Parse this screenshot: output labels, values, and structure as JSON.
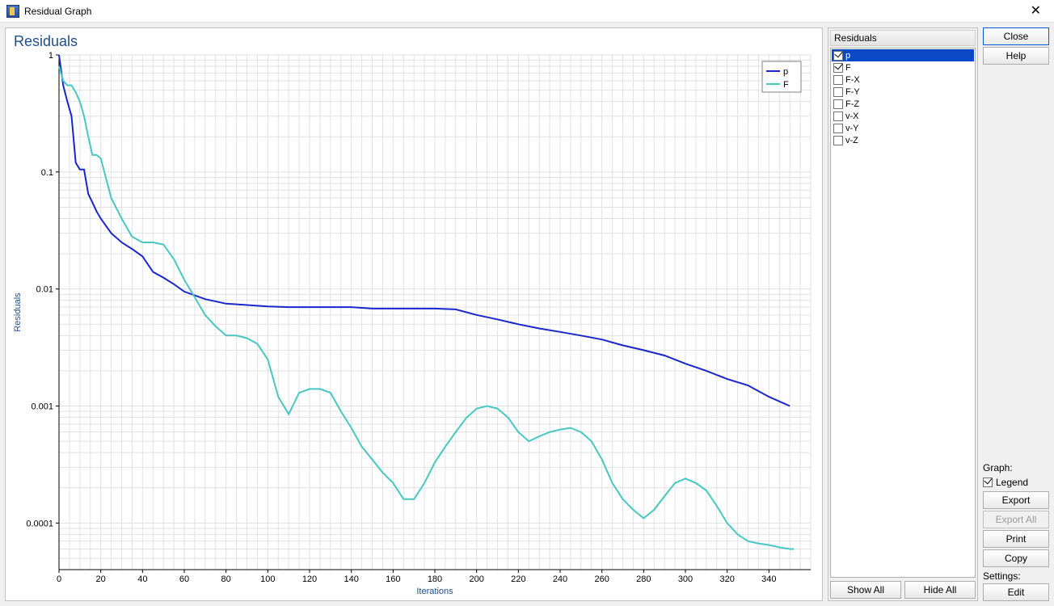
{
  "window": {
    "title": "Residual Graph"
  },
  "chart": {
    "type": "line",
    "title": "Residuals",
    "title_color": "#1e4e8c",
    "title_fontsize": 18,
    "x_label": "Iterations",
    "y_label": "Residuals",
    "label_color": "#1e4e8c",
    "label_fontsize": 11,
    "background_color": "#ffffff",
    "grid_color": "#e2e2e2",
    "axis_color": "#000000",
    "grid": true,
    "x": {
      "min": 0,
      "max": 360,
      "tick_step_major": 20,
      "tick_labels": [
        0,
        20,
        40,
        60,
        80,
        100,
        120,
        140,
        160,
        180,
        200,
        220,
        240,
        260,
        280,
        300,
        320,
        340
      ],
      "minor_divisions": 4,
      "scale": "linear"
    },
    "y": {
      "scale": "log",
      "min": 4e-05,
      "max": 1,
      "tick_values": [
        1,
        0.1,
        0.01,
        0.001,
        0.0001
      ],
      "tick_labels": [
        "1",
        "0.1",
        "0.01",
        "0.001",
        "0.0001"
      ],
      "minor_log_mantissas": [
        2,
        3,
        4,
        5,
        6,
        7,
        8,
        9
      ]
    },
    "line_width": 2,
    "legend": {
      "visible": true,
      "position": "top-right",
      "border_color": "#808080",
      "background_color": "#ffffff"
    },
    "series": [
      {
        "name": "p",
        "label": "p",
        "color": "#1826ce",
        "x": [
          0,
          2,
          4,
          6,
          8,
          10,
          12,
          14,
          16,
          18,
          20,
          25,
          30,
          35,
          40,
          45,
          50,
          55,
          60,
          70,
          80,
          90,
          100,
          110,
          120,
          130,
          140,
          150,
          160,
          170,
          180,
          190,
          200,
          210,
          220,
          230,
          240,
          250,
          260,
          270,
          280,
          290,
          300,
          310,
          320,
          330,
          340,
          350
        ],
        "y": [
          1,
          0.55,
          0.4,
          0.3,
          0.12,
          0.105,
          0.105,
          0.065,
          0.055,
          0.046,
          0.04,
          0.03,
          0.025,
          0.022,
          0.019,
          0.014,
          0.0125,
          0.011,
          0.0095,
          0.0082,
          0.0075,
          0.0073,
          0.0071,
          0.007,
          0.007,
          0.007,
          0.007,
          0.0068,
          0.0068,
          0.0068,
          0.0068,
          0.0067,
          0.006,
          0.0055,
          0.005,
          0.0046,
          0.0043,
          0.004,
          0.0037,
          0.0033,
          0.003,
          0.0027,
          0.0023,
          0.002,
          0.0017,
          0.0015,
          0.0012,
          0.001
        ]
      },
      {
        "name": "F",
        "label": "F",
        "color": "#47c7c3",
        "x": [
          0,
          2,
          4,
          6,
          8,
          10,
          12,
          14,
          16,
          18,
          20,
          25,
          30,
          35,
          40,
          45,
          50,
          55,
          60,
          65,
          70,
          75,
          80,
          85,
          90,
          95,
          100,
          105,
          110,
          115,
          120,
          125,
          130,
          135,
          140,
          145,
          150,
          155,
          160,
          165,
          170,
          175,
          180,
          185,
          190,
          195,
          200,
          205,
          210,
          215,
          220,
          225,
          230,
          235,
          240,
          245,
          250,
          255,
          260,
          265,
          270,
          275,
          280,
          285,
          290,
          295,
          300,
          305,
          310,
          315,
          320,
          325,
          330,
          335,
          340,
          345,
          350,
          352
        ],
        "y": [
          0.8,
          0.6,
          0.55,
          0.55,
          0.48,
          0.4,
          0.3,
          0.2,
          0.14,
          0.14,
          0.13,
          0.06,
          0.04,
          0.028,
          0.025,
          0.025,
          0.024,
          0.018,
          0.012,
          0.0085,
          0.006,
          0.0048,
          0.004,
          0.004,
          0.0038,
          0.0034,
          0.0025,
          0.0012,
          0.00085,
          0.0013,
          0.0014,
          0.0014,
          0.0013,
          0.0009,
          0.00065,
          0.00045,
          0.00035,
          0.00027,
          0.00022,
          0.00016,
          0.00016,
          0.00022,
          0.00033,
          0.00045,
          0.0006,
          0.00079,
          0.00095,
          0.001,
          0.00095,
          0.0008,
          0.0006,
          0.0005,
          0.00055,
          0.0006,
          0.00063,
          0.00065,
          0.0006,
          0.0005,
          0.00035,
          0.00022,
          0.00016,
          0.00013,
          0.00011,
          0.00013,
          0.00017,
          0.00022,
          0.00024,
          0.00022,
          0.00019,
          0.00014,
          0.0001,
          8e-05,
          7e-05,
          6.7e-05,
          6.5e-05,
          6.2e-05,
          6e-05,
          6e-05
        ]
      }
    ]
  },
  "residuals_panel": {
    "title": "Residuals",
    "items": [
      {
        "label": "p",
        "checked": true,
        "selected": true
      },
      {
        "label": "F",
        "checked": true,
        "selected": false
      },
      {
        "label": "F-X",
        "checked": false,
        "selected": false
      },
      {
        "label": "F-Y",
        "checked": false,
        "selected": false
      },
      {
        "label": "F-Z",
        "checked": false,
        "selected": false
      },
      {
        "label": "v-X",
        "checked": false,
        "selected": false
      },
      {
        "label": "v-Y",
        "checked": false,
        "selected": false
      },
      {
        "label": "v-Z",
        "checked": false,
        "selected": false
      }
    ],
    "show_all_label": "Show All",
    "hide_all_label": "Hide All"
  },
  "right_panel": {
    "close_label": "Close",
    "help_label": "Help",
    "graph_header": "Graph:",
    "legend_checkbox_label": "Legend",
    "legend_checked": true,
    "export_label": "Export",
    "export_all_label": "Export All",
    "export_all_enabled": false,
    "print_label": "Print",
    "copy_label": "Copy",
    "settings_header": "Settings:",
    "edit_label": "Edit"
  }
}
